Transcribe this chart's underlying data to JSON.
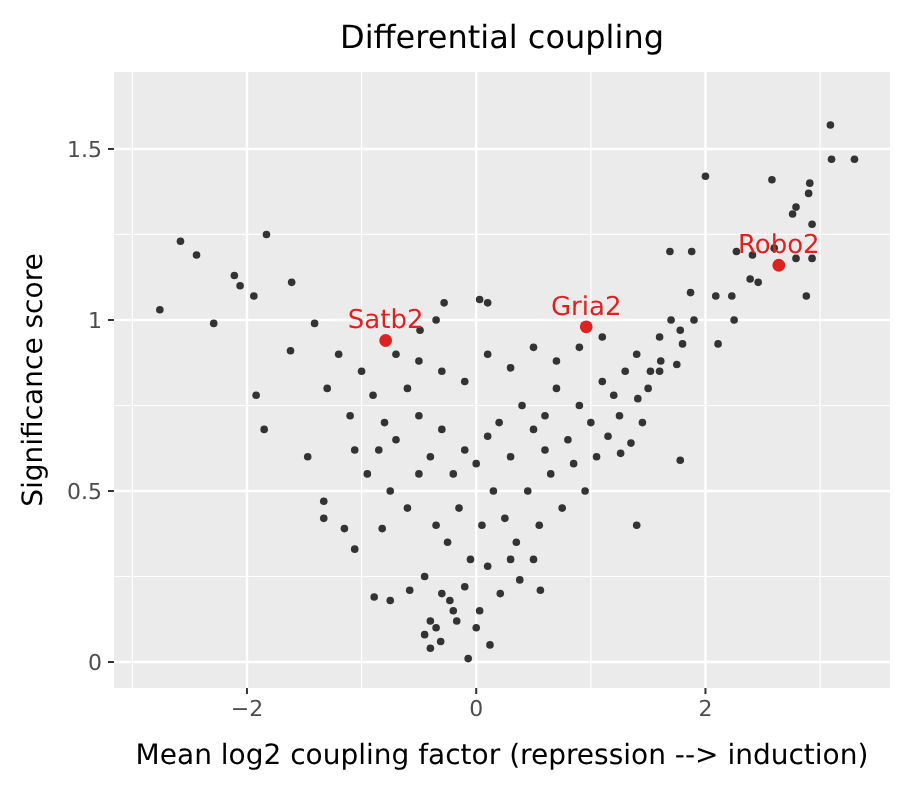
{
  "chart_data": {
    "type": "scatter",
    "title": "Differential coupling",
    "xlabel": "Mean log2 coupling factor (repression --> induction)",
    "ylabel": "Significance score",
    "xlim": [
      -3.16,
      3.61
    ],
    "ylim": [
      -0.076,
      1.725
    ],
    "xticks": [
      {
        "value": -2,
        "label": "−2"
      },
      0,
      2
    ],
    "yticks": [
      0,
      0.5,
      1,
      1.5
    ],
    "grid": true,
    "marker": "circle",
    "series": [
      {
        "color": "#333333",
        "x": [
          -2.58,
          -2.44,
          -2.76,
          -2.29,
          -1.83,
          -1.94,
          -2.11,
          -2.06,
          -1.61,
          -1.62,
          -1.41,
          -1.85,
          -1.92,
          -1.47,
          -1.33,
          -1.33,
          -1.06,
          -1.15,
          -0.89,
          -1.06,
          -0.82,
          -0.4,
          -0.31,
          -0.23,
          -0.07,
          0.12,
          -0.4,
          -0.45,
          0.21,
          0.38,
          -0.17,
          -0.58,
          -0.75,
          0.03,
          0.56,
          0.03,
          0.1,
          -0.28,
          -0.35,
          -0.49,
          2.0,
          3.09,
          3.1,
          3.3,
          2.58,
          2.91,
          2.9,
          2.76,
          2.79,
          2.93,
          2.27,
          2.41,
          2.6,
          2.79,
          2.93,
          2.88,
          2.46,
          2.23,
          2.39,
          2.11,
          1.69,
          1.88,
          2.25,
          1.87,
          1.78,
          2.09,
          1.4,
          1.41,
          1.61,
          1.52,
          1.75,
          1.26,
          1.78,
          -1.0,
          -0.9,
          -0.8,
          -0.7,
          -0.6,
          -0.5,
          -0.4,
          -0.3,
          -0.2,
          -0.1,
          0.0,
          0.1,
          0.2,
          0.3,
          0.4,
          0.5,
          0.6,
          0.7,
          0.8,
          0.9,
          1.0,
          1.1,
          1.2,
          1.3,
          1.4,
          1.5,
          1.6,
          1.7,
          -1.1,
          -0.95,
          -0.75,
          -0.6,
          -0.5,
          -0.35,
          -0.25,
          -0.15,
          -0.05,
          0.05,
          0.15,
          0.25,
          0.35,
          0.45,
          0.55,
          0.65,
          0.75,
          0.85,
          0.95,
          1.05,
          1.15,
          1.25,
          1.35,
          1.45,
          -0.7,
          -0.5,
          -0.3,
          -0.1,
          0.1,
          0.3,
          0.5,
          0.7,
          0.9,
          1.1,
          -0.45,
          -0.3,
          -0.1,
          0.1,
          0.3,
          0.5,
          -0.2,
          0.0,
          -0.35,
          0.6,
          -0.85,
          -1.2,
          -1.3,
          1.6,
          1.9,
          1.8
        ],
        "values": [
          1.23,
          1.19,
          1.03,
          0.99,
          1.25,
          1.07,
          1.13,
          1.1,
          1.11,
          0.91,
          0.99,
          0.68,
          0.78,
          0.6,
          0.47,
          0.42,
          0.62,
          0.39,
          0.19,
          0.33,
          0.39,
          0.12,
          0.06,
          0.18,
          0.01,
          0.05,
          0.04,
          0.08,
          0.2,
          0.24,
          0.12,
          0.21,
          0.18,
          0.15,
          0.21,
          1.06,
          1.05,
          1.05,
          1.0,
          0.97,
          1.42,
          1.57,
          1.47,
          1.47,
          1.41,
          1.4,
          1.37,
          1.31,
          1.33,
          1.28,
          1.2,
          1.19,
          1.21,
          1.18,
          1.18,
          1.07,
          1.11,
          1.07,
          1.12,
          0.93,
          1.2,
          1.2,
          1.0,
          1.08,
          0.97,
          1.07,
          0.4,
          0.77,
          0.88,
          0.85,
          0.87,
          0.61,
          0.59,
          0.85,
          0.78,
          0.7,
          0.65,
          0.8,
          0.72,
          0.6,
          0.68,
          0.55,
          0.62,
          0.58,
          0.66,
          0.7,
          0.6,
          0.75,
          0.68,
          0.72,
          0.8,
          0.65,
          0.75,
          0.7,
          0.82,
          0.78,
          0.85,
          0.9,
          0.8,
          0.95,
          1.0,
          0.72,
          0.55,
          0.5,
          0.45,
          0.55,
          0.4,
          0.35,
          0.45,
          0.3,
          0.4,
          0.5,
          0.42,
          0.35,
          0.5,
          0.4,
          0.55,
          0.45,
          0.58,
          0.5,
          0.6,
          0.66,
          0.72,
          0.64,
          0.7,
          0.9,
          0.88,
          0.85,
          0.82,
          0.9,
          0.86,
          0.92,
          0.88,
          0.92,
          0.95,
          0.25,
          0.2,
          0.22,
          0.28,
          0.3,
          0.3,
          0.15,
          0.1,
          0.1,
          0.62,
          0.62,
          0.9,
          0.8,
          0.85,
          1.0,
          0.93
        ]
      },
      {
        "name": "Satb2",
        "color": "#dd2222",
        "x": [
          -0.79
        ],
        "values": [
          0.94
        ]
      },
      {
        "name": "Gria2",
        "color": "#dd2222",
        "x": [
          0.96
        ],
        "values": [
          0.98
        ]
      },
      {
        "name": "Robo2",
        "color": "#dd2222",
        "x": [
          2.64
        ],
        "values": [
          1.16
        ]
      }
    ]
  }
}
